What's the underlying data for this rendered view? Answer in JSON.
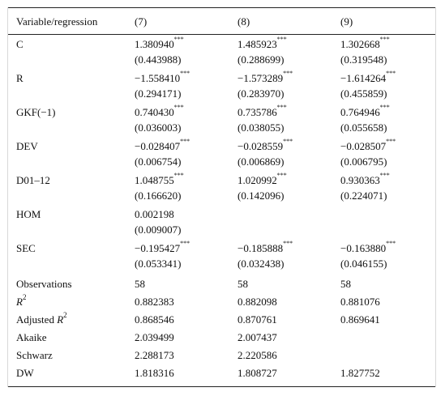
{
  "table": {
    "header": [
      "Variable/regression",
      "(7)",
      "(8)",
      "(9)"
    ],
    "rows": [
      {
        "label": "C",
        "cells": [
          {
            "coef": "1.380940",
            "stars": "***",
            "se": "(0.443988)"
          },
          {
            "coef": "1.485923",
            "stars": "***",
            "se": "(0.288699)"
          },
          {
            "coef": "1.302668",
            "stars": "***",
            "se": "(0.319548)"
          }
        ]
      },
      {
        "label": "R",
        "cells": [
          {
            "coef": "−1.558410",
            "stars": "***",
            "se": "(0.294171)"
          },
          {
            "coef": "−1.573289",
            "stars": "***",
            "se": "(0.283970)"
          },
          {
            "coef": "−1.614264",
            "stars": "***",
            "se": "(0.455859)"
          }
        ]
      },
      {
        "label": "GKF(−1)",
        "cells": [
          {
            "coef": "0.740430",
            "stars": "***",
            "se": "(0.036003)"
          },
          {
            "coef": "0.735786",
            "stars": "***",
            "se": "(0.038055)"
          },
          {
            "coef": "0.764946",
            "stars": "***",
            "se": "(0.055658)"
          }
        ]
      },
      {
        "label": "DEV",
        "cells": [
          {
            "coef": "−0.028407",
            "stars": "***",
            "se": "(0.006754)"
          },
          {
            "coef": "−0.028559",
            "stars": "***",
            "se": "(0.006869)"
          },
          {
            "coef": "−0.028507",
            "stars": "***",
            "se": "(0.006795)"
          }
        ]
      },
      {
        "label": "D01–12",
        "cells": [
          {
            "coef": "1.048755",
            "stars": "***",
            "se": "(0.166620)"
          },
          {
            "coef": "1.020992",
            "stars": "***",
            "se": "(0.142096)"
          },
          {
            "coef": "0.930363",
            "stars": "***",
            "se": "(0.224071)"
          }
        ]
      },
      {
        "label": "HOM",
        "cells": [
          {
            "coef": "0.002198",
            "se": "(0.009007)"
          },
          null,
          null
        ]
      },
      {
        "label": "SEC",
        "cells": [
          {
            "coef": "−0.195427",
            "stars": "***",
            "se": "(0.053341)"
          },
          {
            "coef": "−0.185888",
            "stars": "***",
            "se": "(0.032438)"
          },
          {
            "coef": "−0.163880",
            "stars": "***",
            "se": "(0.046155)"
          }
        ]
      }
    ],
    "stats": [
      {
        "label": "Observations",
        "values": [
          "58",
          "58",
          "58"
        ]
      },
      {
        "label_italic": "R",
        "label_sup": "2",
        "values": [
          "0.882383",
          "0.882098",
          "0.881076"
        ]
      },
      {
        "label_prefix": "Adjusted",
        "label_italic": "R",
        "label_sup": "2",
        "values": [
          "0.868546",
          "0.870761",
          "0.869641"
        ]
      },
      {
        "label": "Akaike",
        "values": [
          "2.039499",
          "2.007437",
          null
        ]
      },
      {
        "label": "Schwarz",
        "values": [
          "2.288173",
          "2.220586",
          null
        ]
      },
      {
        "label": "DW",
        "values": [
          "1.818316",
          "1.808727",
          "1.827752"
        ]
      }
    ]
  }
}
